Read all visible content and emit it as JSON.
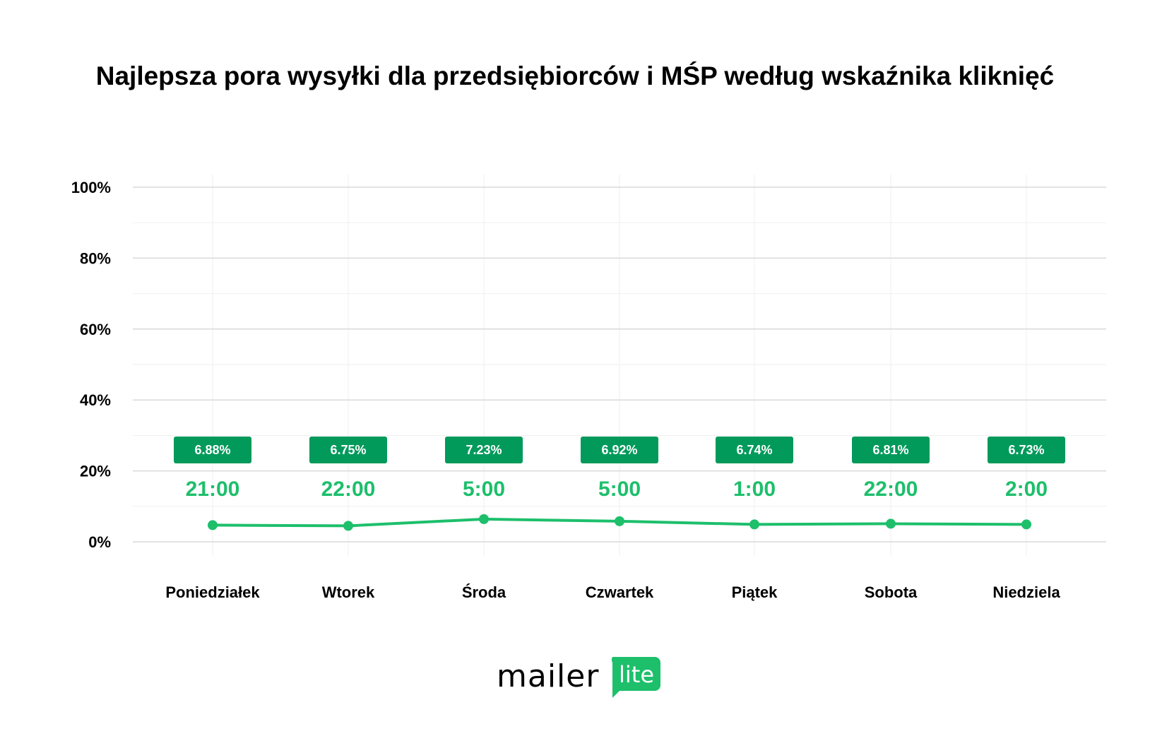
{
  "chart_data": {
    "type": "line",
    "title": "Najlepsza pora wysyłki dla przedsiębiorców i MŚP według wskaźnika kliknięć",
    "xlabel": "",
    "ylabel": "",
    "categories": [
      "Poniedziałek",
      "Wtorek",
      "Środa",
      "Czwartek",
      "Piątek",
      "Sobota",
      "Niedziela"
    ],
    "values": [
      4.7,
      4.5,
      6.4,
      5.8,
      4.9,
      5.1,
      4.9
    ],
    "data_labels": [
      "6.88%",
      "6.75%",
      "7.23%",
      "6.92%",
      "6.74%",
      "6.81%",
      "6.73%"
    ],
    "best_times": [
      "21:00",
      "22:00",
      "5:00",
      "5:00",
      "1:00",
      "22:00",
      "2:00"
    ],
    "ylim": [
      0,
      100
    ],
    "yticks": [
      0,
      20,
      40,
      60,
      80,
      100
    ],
    "ytick_labels": [
      "0%",
      "20%",
      "40%",
      "60%",
      "80%",
      "100%"
    ],
    "grid": true,
    "colors": {
      "line": "#1dbf6b",
      "badge": "#019a5b",
      "time": "#1dbf6b",
      "grid": "#d9d9d9",
      "minor_grid": "#efefef"
    }
  },
  "logo": {
    "text": "mailerlite",
    "word1": "mailer",
    "word2": "lite",
    "color": "#1dbf6b"
  }
}
